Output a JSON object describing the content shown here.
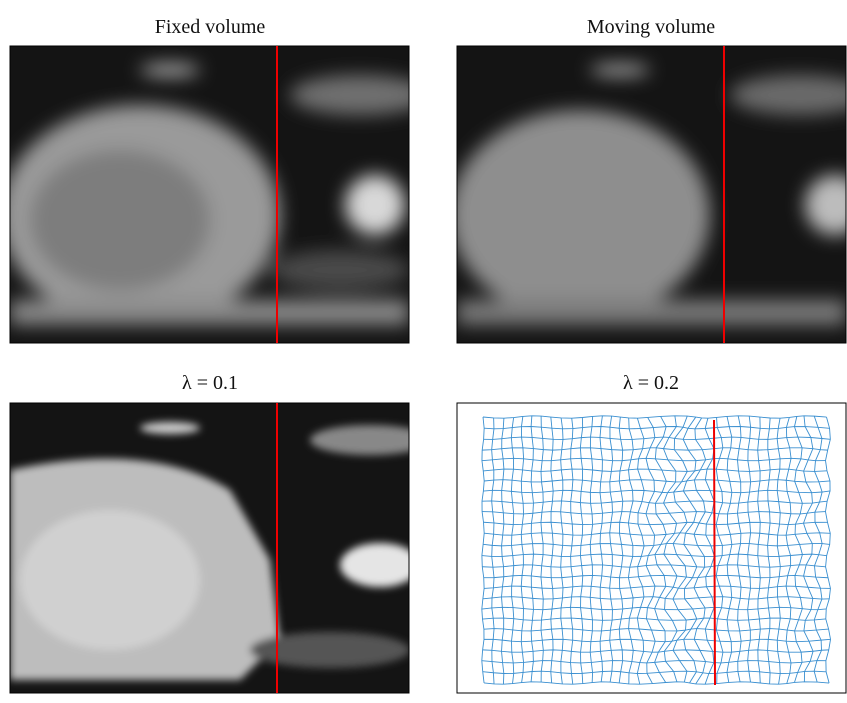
{
  "panels": [
    {
      "title": "Fixed volume"
    },
    {
      "title": "Moving volume"
    },
    {
      "title": "λ = 0.1"
    },
    {
      "title": "λ = 0.2"
    }
  ]
}
